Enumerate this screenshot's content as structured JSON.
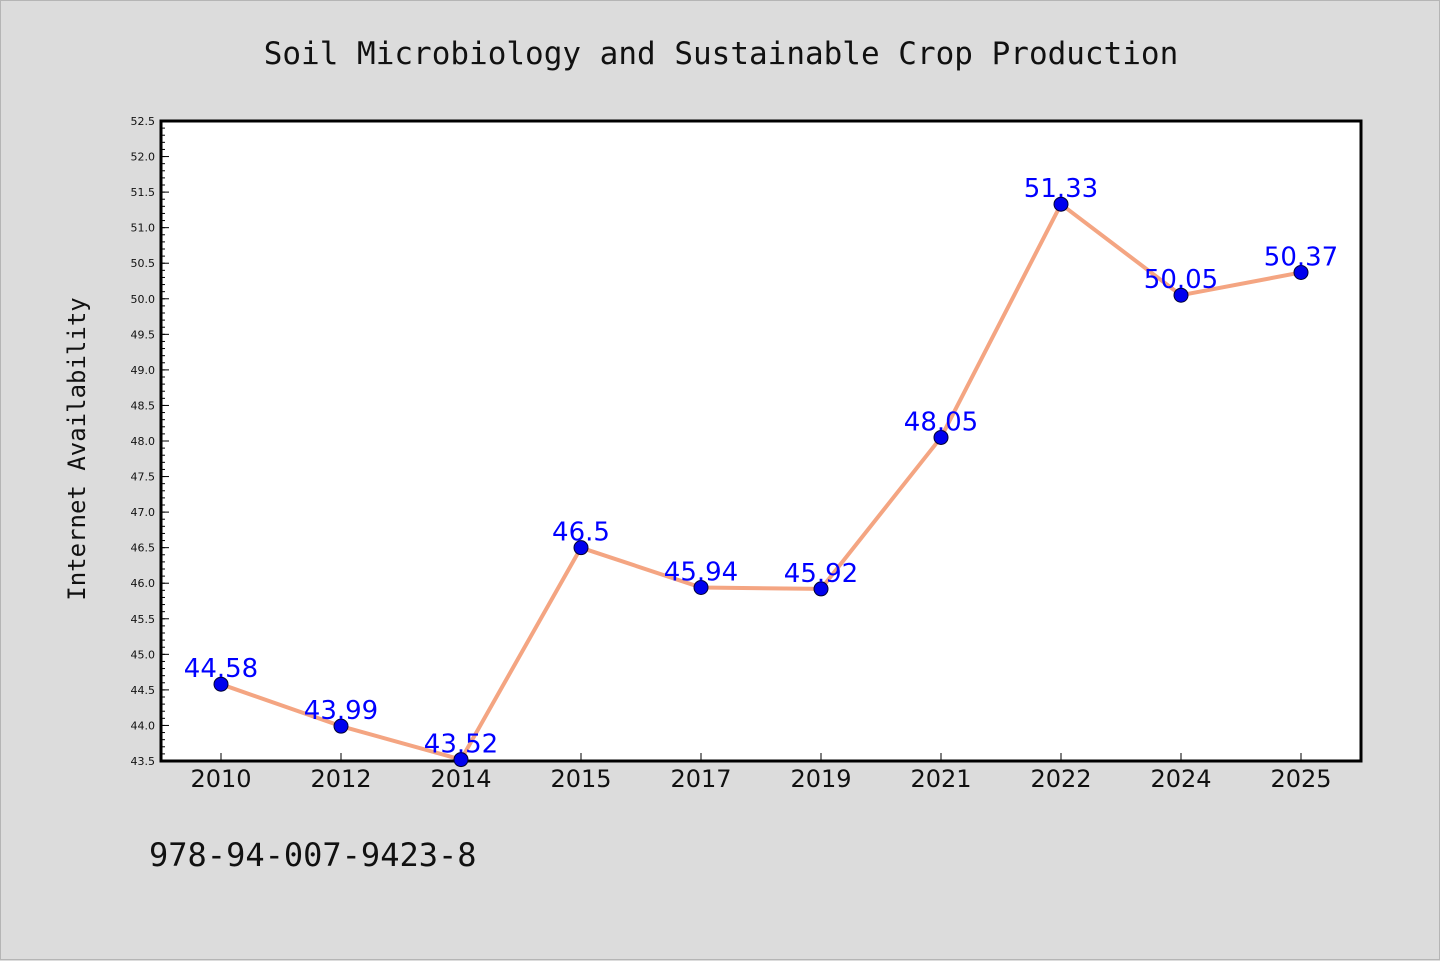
{
  "chart_data": {
    "type": "line",
    "title": "Soil Microbiology and Sustainable Crop Production",
    "xlabel": "",
    "ylabel": "Internet Availability",
    "categories": [
      "2010",
      "2012",
      "2014",
      "2015",
      "2017",
      "2019",
      "2021",
      "2022",
      "2024",
      "2025"
    ],
    "series": [
      {
        "values": [
          44.58,
          43.99,
          43.52,
          46.5,
          45.94,
          45.92,
          48.05,
          51.33,
          50.05,
          50.37
        ],
        "labels": [
          "44.58",
          "43.99",
          "43.52",
          "46.5",
          "45.94",
          "45.92",
          "48.05",
          "51.33",
          "50.05",
          "50.37"
        ],
        "line_color": "#f4a582",
        "marker_color": "#0000ee",
        "label_color": "#0000ff"
      }
    ],
    "ylim": [
      43.5,
      52.5
    ],
    "yticks": [
      "43.5",
      "44.0",
      "44.5",
      "45.0",
      "45.5",
      "46.0",
      "46.5",
      "47.0",
      "47.5",
      "48.0",
      "48.5",
      "49.0",
      "49.5",
      "50.0",
      "50.5",
      "51.0",
      "51.5",
      "52.0",
      "52.5"
    ],
    "grid": false,
    "legend": "none",
    "footnote": "978-94-007-9423-8"
  }
}
